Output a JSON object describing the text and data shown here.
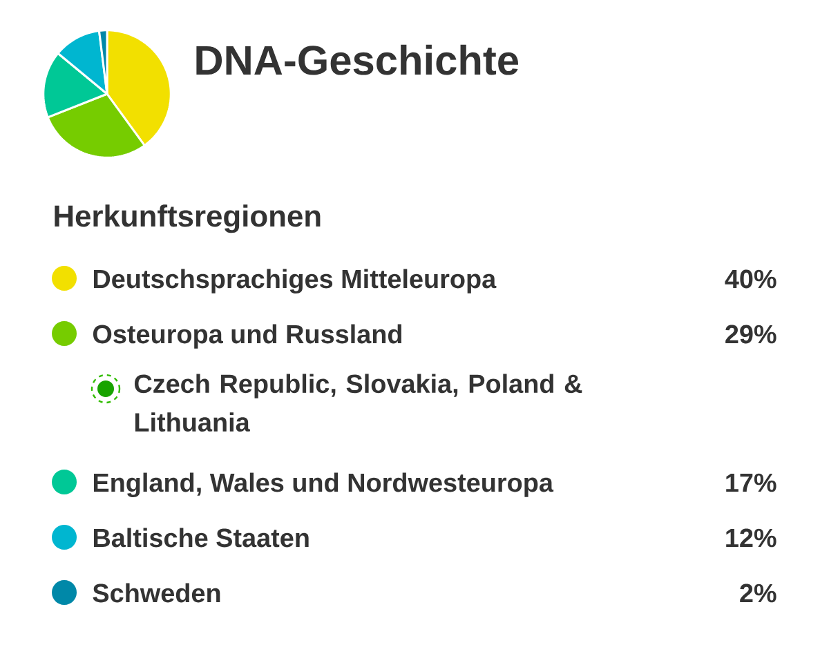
{
  "chart_data": {
    "type": "pie",
    "title": "DNA-Geschichte",
    "legend_title": "Herkunftsregionen",
    "categories": [
      "Deutschsprachiges Mitteleuropa",
      "Osteuropa und Russland",
      "England, Wales und Nordwesteuropa",
      "Baltische Staaten",
      "Schweden"
    ],
    "values": [
      40,
      29,
      17,
      12,
      2
    ],
    "colors": [
      "#f2e000",
      "#76cc00",
      "#00c896",
      "#00b6d0",
      "#0088a8"
    ],
    "value_labels": [
      "40%",
      "29%",
      "17%",
      "12%",
      "2%"
    ],
    "legend": "bottom",
    "annotations": [
      "Czech Republic, Slovakia, Poland & Lithuania"
    ]
  }
}
